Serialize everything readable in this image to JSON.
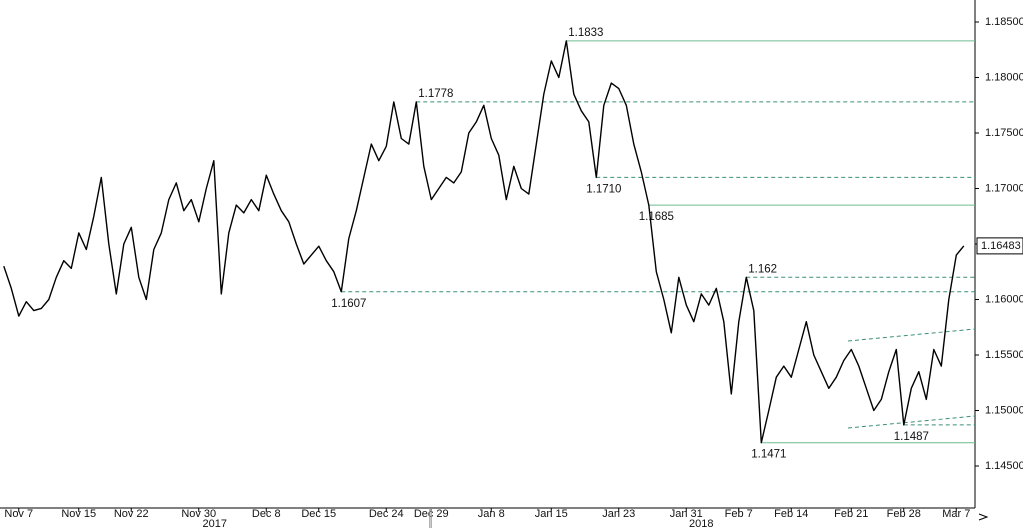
{
  "chart_data": {
    "type": "line",
    "categories": [
      null,
      null,
      "Nov 7",
      null,
      null,
      null,
      null,
      null,
      null,
      null,
      "Nov 15",
      null,
      null,
      null,
      null,
      null,
      null,
      "Nov 22",
      null,
      null,
      null,
      null,
      null,
      null,
      null,
      null,
      "Nov 30",
      null,
      null,
      null,
      null,
      null,
      null,
      null,
      null,
      "Dec 8",
      null,
      null,
      null,
      null,
      null,
      null,
      "Dec 15",
      null,
      null,
      null,
      null,
      null,
      null,
      null,
      null,
      "Dec 24",
      null,
      null,
      null,
      null,
      null,
      "Dec 29",
      null,
      null,
      null,
      null,
      null,
      null,
      null,
      "Jan 8",
      null,
      null,
      null,
      null,
      null,
      null,
      null,
      "Jan 15",
      null,
      null,
      null,
      null,
      null,
      null,
      null,
      null,
      "Jan 23",
      null,
      null,
      null,
      null,
      null,
      null,
      null,
      null,
      "Jan 31",
      null,
      null,
      null,
      null,
      null,
      null,
      "Feb 7",
      null,
      null,
      null,
      null,
      null,
      null,
      "Feb 14",
      null,
      null,
      null,
      null,
      null,
      null,
      null,
      "Feb 21",
      null,
      null,
      null,
      null,
      null,
      null,
      "Feb 28",
      null,
      null,
      null,
      null,
      null,
      null,
      "Mar 7",
      null
    ],
    "year_labels": [
      "2017",
      "2018"
    ],
    "series": [
      {
        "color": "#000000",
        "values": [
          1.163,
          1.161,
          1.1585,
          1.1598,
          1.159,
          1.1592,
          1.16,
          1.162,
          1.1635,
          1.1628,
          1.166,
          1.1645,
          1.1675,
          1.171,
          1.165,
          1.1605,
          1.165,
          1.1665,
          1.162,
          1.16,
          1.1645,
          1.166,
          1.169,
          1.1705,
          1.168,
          1.169,
          1.167,
          1.17,
          1.1725,
          1.1605,
          1.166,
          1.1685,
          1.1678,
          1.169,
          1.168,
          1.1712,
          1.1695,
          1.168,
          1.167,
          1.165,
          1.1632,
          1.164,
          1.1648,
          1.1635,
          1.1625,
          1.1607,
          1.1655,
          1.168,
          1.171,
          1.174,
          1.1725,
          1.1738,
          1.1778,
          1.1745,
          1.174,
          1.1778,
          1.172,
          1.169,
          1.17,
          1.171,
          1.1705,
          1.1715,
          1.175,
          1.176,
          1.1775,
          1.1745,
          1.173,
          1.169,
          1.172,
          1.17,
          1.1695,
          1.174,
          1.1785,
          1.1815,
          1.18,
          1.1833,
          1.1785,
          1.177,
          1.176,
          1.171,
          1.1775,
          1.1795,
          1.179,
          1.1775,
          1.174,
          1.1715,
          1.1685,
          1.1625,
          1.16,
          1.157,
          1.162,
          1.1595,
          1.158,
          1.1605,
          1.1595,
          1.161,
          1.158,
          1.1515,
          1.158,
          1.162,
          1.159,
          1.1471,
          1.15,
          1.153,
          1.154,
          1.153,
          1.1555,
          1.158,
          1.155,
          1.1535,
          1.152,
          1.153,
          1.1545,
          1.1555,
          1.154,
          1.152,
          1.15,
          1.151,
          1.1535,
          1.1555,
          1.1487,
          1.152,
          1.1535,
          1.151,
          1.1555,
          1.154,
          1.16,
          1.164,
          1.16483
        ]
      }
    ],
    "levels": [
      {
        "value": 1.1833,
        "label": "1.1833",
        "style": "solid",
        "color": "#6dbb8f"
      },
      {
        "value": 1.1778,
        "label": "1.1778",
        "style": "dashed",
        "color": "#3b8f7a"
      },
      {
        "value": 1.171,
        "label": "1.1710",
        "style": "dashed",
        "color": "#3b8f7a"
      },
      {
        "value": 1.1685,
        "label": "1.1685",
        "style": "solid",
        "color": "#6dbb8f"
      },
      {
        "value": 1.1607,
        "label": "1.1607",
        "style": "dashed",
        "color": "#3b8f7a"
      },
      {
        "value": 1.162,
        "label": "1.162",
        "style": "dashed",
        "color": "#3b8f7a"
      },
      {
        "value": 1.1487,
        "label": "1.1487",
        "style": "dashed",
        "color": "#3b8f7a"
      },
      {
        "value": 1.1471,
        "label": "1.1471",
        "style": "solid",
        "color": "#6dbb8f"
      }
    ],
    "ylim": [
      1.145,
      1.185
    ],
    "yticks": [
      {
        "value": 1.145,
        "label": "1.14500"
      },
      {
        "value": 1.15,
        "label": "1.15000"
      },
      {
        "value": 1.155,
        "label": "1.15500"
      },
      {
        "value": 1.16,
        "label": "1.16000"
      },
      {
        "value": 1.165,
        "label": "1.16500"
      },
      {
        "value": 1.17,
        "label": "1.17000"
      },
      {
        "value": 1.175,
        "label": "1.17500"
      },
      {
        "value": 1.18,
        "label": "1.18000"
      },
      {
        "value": 1.185,
        "label": "1.18500"
      }
    ]
  }
}
